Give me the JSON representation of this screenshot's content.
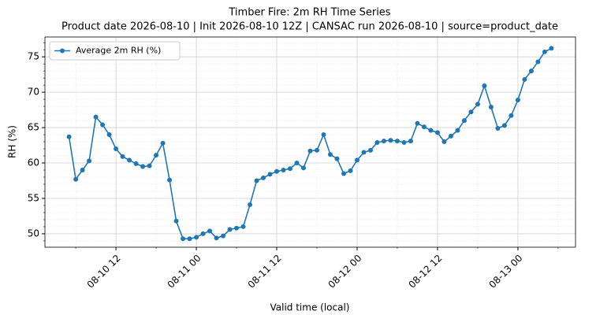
{
  "chart_data": {
    "type": "line",
    "title": "Timber Fire: 2m RH Time Series",
    "subtitle": "Product date 2026-08-10 | Init 2026-08-10 12Z | CANSAC run 2026-08-10 | source=product_date",
    "xlabel": "Valid time (local)",
    "ylabel": "RH (%)",
    "x": [
      "08-10 05",
      "08-10 06",
      "08-10 07",
      "08-10 08",
      "08-10 09",
      "08-10 10",
      "08-10 11",
      "08-10 12",
      "08-10 13",
      "08-10 14",
      "08-10 15",
      "08-10 16",
      "08-10 17",
      "08-10 18",
      "08-10 19",
      "08-10 20",
      "08-10 21",
      "08-10 22",
      "08-10 23",
      "08-11 00",
      "08-11 01",
      "08-11 02",
      "08-11 03",
      "08-11 04",
      "08-11 05",
      "08-11 06",
      "08-11 07",
      "08-11 08",
      "08-11 09",
      "08-11 10",
      "08-11 11",
      "08-11 12",
      "08-11 13",
      "08-11 14",
      "08-11 15",
      "08-11 16",
      "08-11 17",
      "08-11 18",
      "08-11 19",
      "08-11 20",
      "08-11 21",
      "08-11 22",
      "08-11 23",
      "08-12 00",
      "08-12 01",
      "08-12 02",
      "08-12 03",
      "08-12 04",
      "08-12 05",
      "08-12 06",
      "08-12 07",
      "08-12 08",
      "08-12 09",
      "08-12 10",
      "08-12 11",
      "08-12 12",
      "08-12 13",
      "08-12 14",
      "08-12 15",
      "08-12 16",
      "08-12 17",
      "08-12 18",
      "08-12 19",
      "08-12 20",
      "08-12 21",
      "08-12 22",
      "08-12 23",
      "08-13 00",
      "08-13 01",
      "08-13 02",
      "08-13 03",
      "08-13 04",
      "08-13 05"
    ],
    "series": [
      {
        "name": "Average 2m RH (%)",
        "color": "#1f77b4",
        "values": [
          63.7,
          57.7,
          59.0,
          60.3,
          66.5,
          65.4,
          64.0,
          62.0,
          60.9,
          60.4,
          59.9,
          59.5,
          59.6,
          61.1,
          62.8,
          57.6,
          51.8,
          49.3,
          49.3,
          49.5,
          50.0,
          50.4,
          49.4,
          49.7,
          50.6,
          50.8,
          51.0,
          54.1,
          57.5,
          57.9,
          58.4,
          58.8,
          59.0,
          59.2,
          60.0,
          59.3,
          61.7,
          61.8,
          64.0,
          61.2,
          60.6,
          58.5,
          58.9,
          60.4,
          61.5,
          61.8,
          62.9,
          63.1,
          63.2,
          63.1,
          62.9,
          63.1,
          65.6,
          65.1,
          64.6,
          64.3,
          63.0,
          63.8,
          64.6,
          66.0,
          67.2,
          68.3,
          70.9,
          67.9,
          64.9,
          65.3,
          66.7,
          68.9,
          71.8,
          73.0,
          74.3,
          75.7,
          76.2
        ]
      }
    ],
    "xlim": [
      "08-10 01:24",
      "08-13 08:36"
    ],
    "xticks": [
      "08-10 12",
      "08-11 00",
      "08-11 12",
      "08-12 00",
      "08-12 12",
      "08-13 00"
    ],
    "xticks_minor": [
      "08-10 06",
      "08-10 18",
      "08-11 06",
      "08-11 18",
      "08-12 06",
      "08-12 18",
      "08-13 06"
    ],
    "ylim": [
      48.1,
      77.8
    ],
    "yticks": [
      50,
      55,
      60,
      65,
      70,
      75
    ],
    "yticks_minor": [
      49,
      51,
      52,
      53,
      54,
      56,
      57,
      58,
      59,
      61,
      62,
      63,
      64,
      66,
      67,
      68,
      69,
      71,
      72,
      73,
      74,
      76,
      77
    ],
    "grid": true,
    "legend": "upper left"
  }
}
